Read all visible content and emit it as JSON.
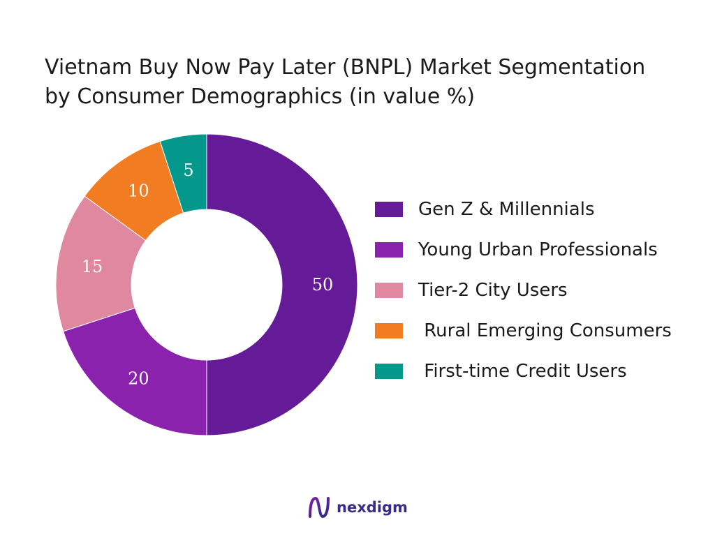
{
  "chart_data": {
    "type": "pie",
    "title": "Vietnam Buy Now Pay Later (BNPL) Market Segmentation by Consumer Demographics (in value %)",
    "title_lines": [
      "Vietnam Buy Now Pay Later (BNPL) Market Segmentation",
      "by Consumer Demographics (in value %)"
    ],
    "donut": true,
    "legend_position": "right",
    "slices": [
      {
        "label": "Gen Z & Millennials",
        "value": 50,
        "color": "#651a98"
      },
      {
        "label": "Young Urban Professionals",
        "value": 20,
        "color": "#8a22ad"
      },
      {
        "label": "Tier-2 City Users",
        "value": 15,
        "color": "#df889f"
      },
      {
        "label": " Rural Emerging Consumers",
        "value": 10,
        "color": "#f27c22"
      },
      {
        "label": " First-time Credit Users",
        "value": 5,
        "color": "#03988b"
      }
    ]
  },
  "branding": {
    "name": "nexdigm",
    "logo_icon": "nexdigm-logo-icon",
    "colors": {
      "text": "#3c2b8a",
      "gradient_start": "#7a1fa2",
      "gradient_end": "#2b2d8f"
    }
  }
}
